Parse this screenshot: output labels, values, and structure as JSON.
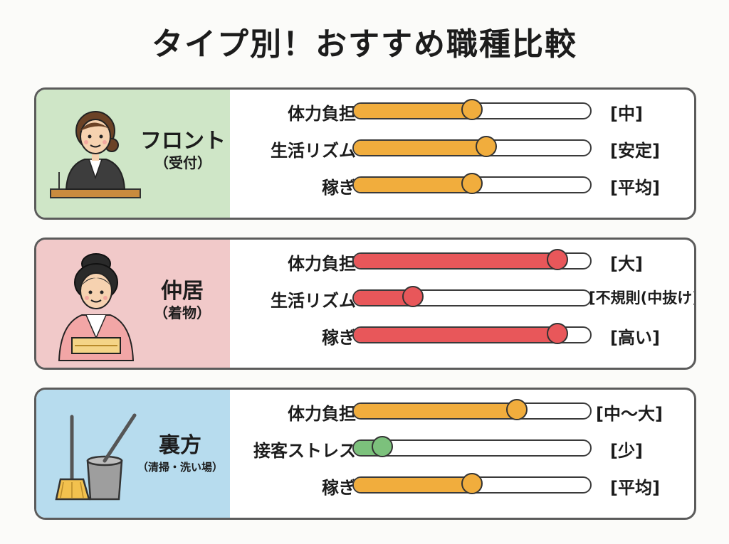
{
  "title": "タイプ別！おすすめ職種比較",
  "cards": [
    {
      "name": "フロント",
      "sub": "（受付）",
      "bg": "#cfe6c7",
      "icon": "receptionist-icon",
      "rows": [
        {
          "label": "体力負担",
          "value": 0.5,
          "text": "[中]",
          "color": "#f1ad3d"
        },
        {
          "label": "生活リズム",
          "value": 0.56,
          "text": "[安定]",
          "color": "#f1ad3d"
        },
        {
          "label": "稼ぎ",
          "value": 0.5,
          "text": "[平均]",
          "color": "#f1ad3d"
        }
      ]
    },
    {
      "name": "仲居",
      "sub": "（着物）",
      "bg": "#f1c9c9",
      "icon": "kimono-woman-icon",
      "rows": [
        {
          "label": "体力負担",
          "value": 0.86,
          "text": "[大]",
          "color": "#e8575a"
        },
        {
          "label": "生活リズム",
          "value": 0.25,
          "text": "[不規則(中抜け)]",
          "color": "#e8575a"
        },
        {
          "label": "稼ぎ",
          "value": 0.86,
          "text": "[高い]",
          "color": "#e8575a"
        }
      ]
    },
    {
      "name": "裏方",
      "sub": "（清掃・洗い場）",
      "bg": "#b7dcee",
      "icon": "mop-bucket-icon",
      "rows": [
        {
          "label": "体力負担",
          "value": 0.69,
          "text": "[中〜大]",
          "color": "#f1ad3d"
        },
        {
          "label": "接客ストレス",
          "value": 0.12,
          "text": "[少]",
          "color": "#7cc17c"
        },
        {
          "label": "稼ぎ",
          "value": 0.5,
          "text": "[平均]",
          "color": "#f1ad3d"
        }
      ]
    }
  ],
  "chart_data": {
    "type": "bar",
    "title": "タイプ別！おすすめ職種比較",
    "series": [
      {
        "name": "フロント",
        "categories": [
          "体力負担",
          "生活リズム",
          "稼ぎ"
        ],
        "values": [
          0.5,
          0.56,
          0.5
        ],
        "labels": [
          "[中]",
          "[安定]",
          "[平均]"
        ]
      },
      {
        "name": "仲居",
        "categories": [
          "体力負担",
          "生活リズム",
          "稼ぎ"
        ],
        "values": [
          0.86,
          0.25,
          0.86
        ],
        "labels": [
          "[大]",
          "[不規則(中抜け)]",
          "[高い]"
        ]
      },
      {
        "name": "裏方",
        "categories": [
          "体力負担",
          "接客ストレス",
          "稼ぎ"
        ],
        "values": [
          0.69,
          0.12,
          0.5
        ],
        "labels": [
          "[中〜大]",
          "[少]",
          "[平均]"
        ]
      }
    ],
    "ylim": [
      0,
      1
    ]
  }
}
